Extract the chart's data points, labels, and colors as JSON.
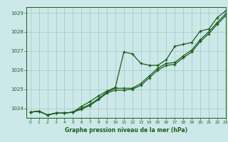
{
  "title": "Graphe pression niveau de la mer (hPa)",
  "background_color": "#cce8e8",
  "grid_color": "#aacccc",
  "line_color": "#1a5c1a",
  "xlim": [
    -0.5,
    23
  ],
  "ylim": [
    1023.5,
    1029.3
  ],
  "yticks": [
    1024,
    1025,
    1026,
    1027,
    1028,
    1029
  ],
  "xticks": [
    0,
    1,
    2,
    3,
    4,
    5,
    6,
    7,
    8,
    9,
    10,
    11,
    12,
    13,
    14,
    15,
    16,
    17,
    18,
    19,
    20,
    21,
    22,
    23
  ],
  "series1_x": [
    0,
    1,
    2,
    3,
    4,
    5,
    6,
    7,
    8,
    9,
    10,
    11,
    12,
    13,
    14,
    15,
    16,
    17,
    18,
    19,
    20,
    21,
    22,
    23
  ],
  "series1_y": [
    1023.8,
    1023.85,
    1023.65,
    1023.75,
    1023.75,
    1023.8,
    1024.1,
    1024.35,
    1024.65,
    1024.9,
    1025.1,
    1026.95,
    1026.85,
    1026.35,
    1026.25,
    1026.25,
    1026.55,
    1027.25,
    1027.35,
    1027.45,
    1028.05,
    1028.15,
    1028.75,
    1029.1
  ],
  "series2_x": [
    0,
    1,
    2,
    3,
    4,
    5,
    6,
    7,
    8,
    9,
    10,
    11,
    12,
    13,
    14,
    15,
    16,
    17,
    18,
    19,
    20,
    21,
    22,
    23
  ],
  "series2_y": [
    1023.8,
    1023.85,
    1023.65,
    1023.75,
    1023.75,
    1023.8,
    1024.0,
    1024.2,
    1024.5,
    1024.85,
    1025.05,
    1025.05,
    1025.05,
    1025.3,
    1025.7,
    1026.1,
    1026.35,
    1026.4,
    1026.75,
    1027.05,
    1027.6,
    1028.0,
    1028.5,
    1028.95
  ],
  "series3_x": [
    0,
    1,
    2,
    3,
    4,
    5,
    6,
    7,
    8,
    9,
    10,
    11,
    12,
    13,
    14,
    15,
    16,
    17,
    18,
    19,
    20,
    21,
    22,
    23
  ],
  "series3_y": [
    1023.8,
    1023.85,
    1023.65,
    1023.75,
    1023.75,
    1023.8,
    1023.95,
    1024.15,
    1024.45,
    1024.8,
    1024.95,
    1024.95,
    1025.0,
    1025.2,
    1025.6,
    1026.0,
    1026.25,
    1026.3,
    1026.65,
    1026.95,
    1027.5,
    1027.9,
    1028.4,
    1028.85
  ]
}
